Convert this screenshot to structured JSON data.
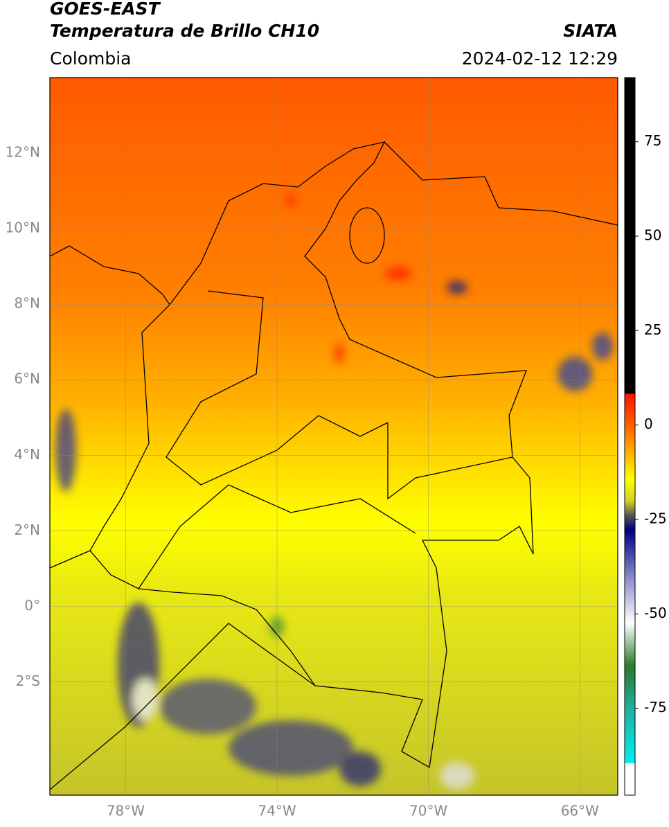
{
  "header": {
    "title": "GOES-EAST",
    "subtitle": "Temperatura de Brillo CH10",
    "region": "Colombia",
    "source": "SIATA",
    "datetime": "2024-02-12 12:29"
  },
  "map": {
    "lon_range": [
      -80,
      -65
    ],
    "lat_range": [
      -5,
      14
    ],
    "lon_ticks": [
      {
        "value": -78,
        "label": "78°W"
      },
      {
        "value": -74,
        "label": "74°W"
      },
      {
        "value": -70,
        "label": "70°W"
      },
      {
        "value": -66,
        "label": "66°W"
      }
    ],
    "lat_ticks": [
      {
        "value": 12,
        "label": "12°N"
      },
      {
        "value": 10,
        "label": "10°N"
      },
      {
        "value": 8,
        "label": "8°N"
      },
      {
        "value": 6,
        "label": "6°N"
      },
      {
        "value": 4,
        "label": "4°N"
      },
      {
        "value": 2,
        "label": "2°N"
      },
      {
        "value": 0,
        "label": "0°"
      },
      {
        "value": -2,
        "label": "2°S"
      }
    ]
  },
  "colorbar": {
    "range": [
      -98,
      92
    ],
    "ticks": [
      75,
      50,
      25,
      0,
      -25,
      -50,
      -75
    ]
  }
}
